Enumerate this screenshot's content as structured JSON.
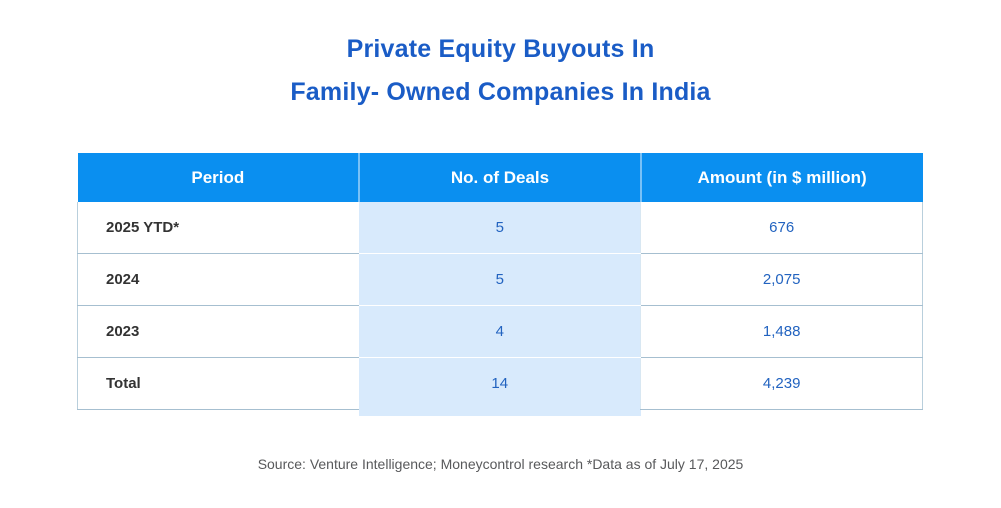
{
  "title": {
    "line1": "Private Equity Buyouts In",
    "line2": "Family- Owned Companies In India"
  },
  "table": {
    "headers": [
      {
        "label": "Period"
      },
      {
        "label": "No. of Deals"
      },
      {
        "label": "Amount (in $ million)"
      }
    ],
    "rows": [
      {
        "period": "2025 YTD*",
        "deals": "5",
        "amount": "676"
      },
      {
        "period": "2024",
        "deals": "5",
        "amount": "2,075"
      },
      {
        "period": "2023",
        "deals": "4",
        "amount": "1,488"
      },
      {
        "period": "Total",
        "deals": "14",
        "amount": "4,239"
      }
    ]
  },
  "footer": {
    "source_note": "Source: Venture Intelligence; Moneycontrol research *Data as of July 17, 2025"
  },
  "colors": {
    "header_bg": "#0a8ff0",
    "highlight_column_bg": "#d8eafc",
    "title_text": "#1a5cc6",
    "value_text": "#2263c0",
    "period_text": "#333333",
    "source_text": "#58595b",
    "border": "#a6bfd0"
  },
  "chart_data": {
    "type": "table",
    "title": "Private Equity Buyouts In Family- Owned Companies In India",
    "columns": [
      "Period",
      "No. of Deals",
      "Amount (in $ million)"
    ],
    "rows": [
      [
        "2025 YTD*",
        5,
        676
      ],
      [
        "2024",
        5,
        2075
      ],
      [
        "2023",
        4,
        1488
      ],
      [
        "Total",
        14,
        4239
      ]
    ],
    "source": "Source: Venture Intelligence; Moneycontrol research *Data as of July 17, 2025"
  }
}
